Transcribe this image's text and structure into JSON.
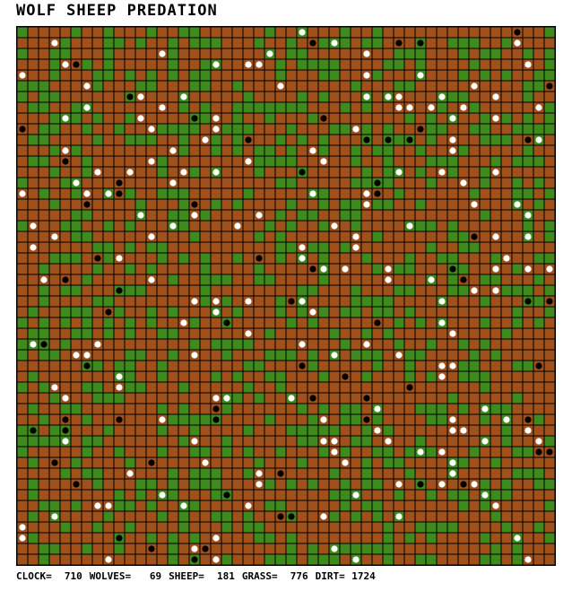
{
  "title": "WOLF SHEEP PREDATION",
  "stats": [
    {
      "label": "CLOCK=",
      "value": 710
    },
    {
      "label": "WOLVES=",
      "value": 69
    },
    {
      "label": "SHEEP=",
      "value": 181
    },
    {
      "label": "GRASS=",
      "value": 776
    },
    {
      "label": "DIRT=",
      "value": 1724
    }
  ]
}
